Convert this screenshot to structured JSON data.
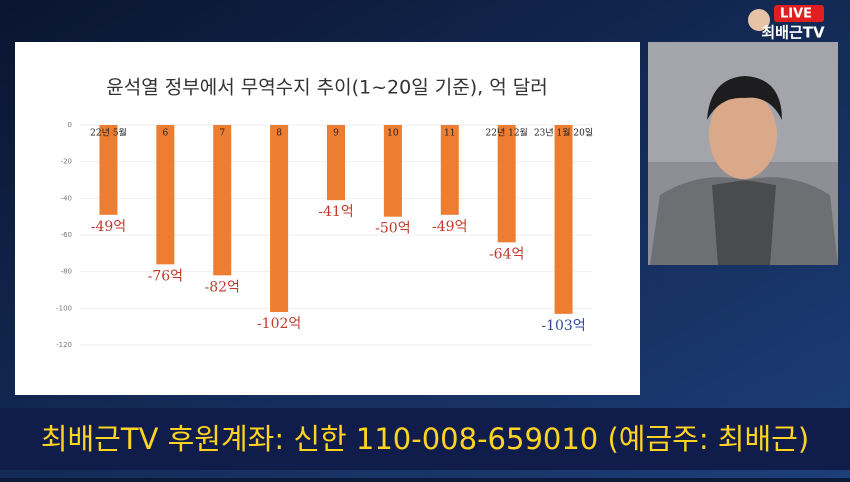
{
  "chart_data": {
    "type": "bar",
    "title": "윤석열 정부에서 무역수지 추이(1~20일 기준), 억 달러",
    "categories": [
      "22년 5월",
      "6",
      "7",
      "8",
      "9",
      "10",
      "11",
      "22년 12월",
      "23년 1월 20일"
    ],
    "values": [
      -49,
      -76,
      -82,
      -102,
      -41,
      -50,
      -49,
      -64,
      -103
    ],
    "value_labels": [
      "-49억",
      "-76억",
      "-82억",
      "-102억",
      "-41억",
      "-50억",
      "-49억",
      "-64억",
      "-103억"
    ],
    "value_label_colors": [
      "#c0392b",
      "#c0392b",
      "#c0392b",
      "#c0392b",
      "#c0392b",
      "#c0392b",
      "#c0392b",
      "#c0392b",
      "#2e4a9e"
    ],
    "color": "#ed7d31",
    "ylim": [
      -120,
      0
    ],
    "yticks": [
      0,
      -20,
      -40,
      -60,
      -80,
      -100,
      -120
    ],
    "grid": true
  },
  "logo": {
    "live": "LIVE",
    "name": "최배근TV"
  },
  "banner": "최배근TV 후원계좌: 신한 110-008-659010 (예금주: 최배근)"
}
